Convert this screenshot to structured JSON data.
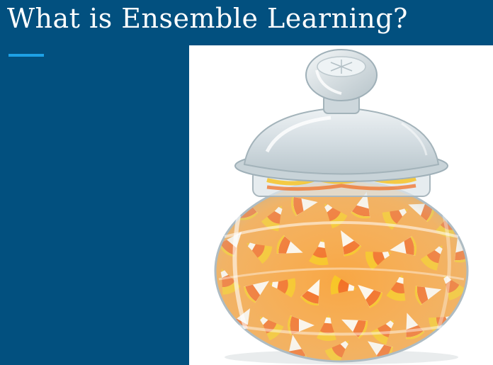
{
  "slide": {
    "title": "What is Ensemble Learning?"
  },
  "image": {
    "subject": "candy-corn-jar-illustration"
  },
  "colors": {
    "background": "#02507f",
    "accent": "#1da1e6",
    "title_text": "#ffffff",
    "panel": "#ffffff",
    "candy_yellow": "#f7c21a",
    "candy_orange": "#f26a1b",
    "candy_white": "#fdf6ea"
  }
}
